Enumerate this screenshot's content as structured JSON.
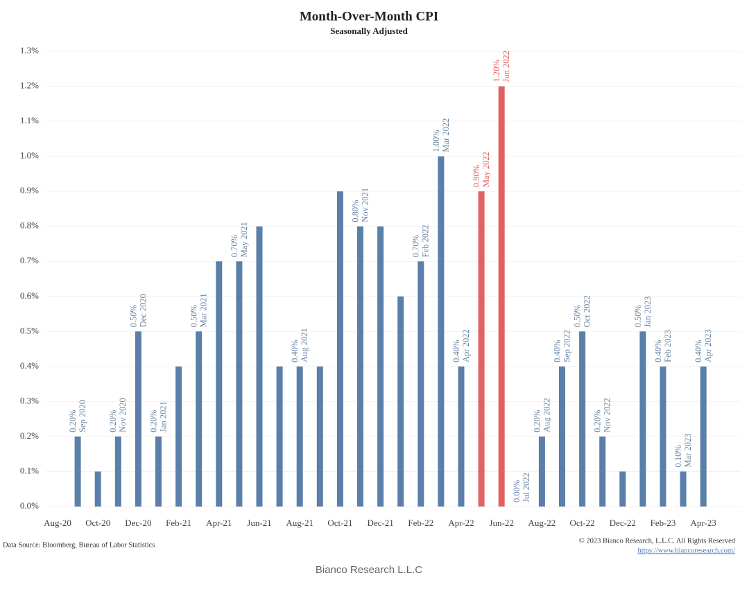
{
  "chart_data": {
    "type": "bar",
    "title": "Month-Over-Month CPI",
    "subtitle": "Seasonally Adjusted",
    "categories": [
      "Aug-20",
      null,
      "Oct-20",
      null,
      "Dec-20",
      null,
      "Feb-21",
      null,
      "Apr-21",
      null,
      "Jun-21",
      null,
      "Aug-21",
      null,
      "Oct-21",
      null,
      "Dec-21",
      null,
      "Feb-22",
      null,
      "Apr-22",
      null,
      "Jun-22",
      null,
      "Aug-22",
      null,
      "Oct-22",
      null,
      "Dec-22",
      null,
      "Feb-23",
      null,
      "Apr-23"
    ],
    "values": [
      null,
      0.2,
      0.1,
      0.2,
      0.5,
      0.2,
      0.4,
      0.5,
      0.7,
      0.7,
      0.8,
      0.4,
      0.4,
      0.4,
      0.9,
      0.8,
      0.8,
      0.6,
      0.7,
      1.0,
      0.4,
      0.9,
      1.2,
      0.0,
      0.2,
      0.4,
      0.5,
      0.2,
      0.1,
      0.5,
      0.4,
      0.1,
      0.4
    ],
    "value_labels": [
      null,
      "0.20%",
      null,
      "0.20%",
      "0.50%",
      "0.20%",
      null,
      "0.50%",
      null,
      "0.70%",
      null,
      null,
      "0.40%",
      null,
      null,
      "0.80%",
      null,
      null,
      "0.70%",
      "1.00%",
      "0.40%",
      "0.90%",
      "1.20%",
      "0.00%",
      "0.20%",
      "0.40%",
      "0.50%",
      "0.20%",
      null,
      "0.50%",
      "0.40%",
      "0.10%",
      "0.40%"
    ],
    "bar_labels": [
      null,
      "Sep 2020",
      null,
      "Nov 2020",
      "Dec 2020",
      "Jan 2021",
      null,
      "Mar 2021",
      null,
      "May 2021",
      null,
      null,
      "Aug 2021",
      null,
      null,
      "Nov 2021",
      null,
      null,
      "Feb 2022",
      "Mar 2022",
      "Apr 2022",
      "May 2022",
      "Jun 2022",
      "Jul 2022",
      "Aug 2022",
      "Sep 2022",
      "Oct 2022",
      "Nov 2022",
      null,
      "Jan 2023",
      "Feb 2023",
      "Mar 2023",
      "Apr 2023"
    ],
    "colors": [
      "#5a7fa8",
      "#5a7fa8",
      "#5a7fa8",
      "#5a7fa8",
      "#5a7fa8",
      "#5a7fa8",
      "#5a7fa8",
      "#5a7fa8",
      "#5a7fa8",
      "#5a7fa8",
      "#5a7fa8",
      "#5a7fa8",
      "#5a7fa8",
      "#5a7fa8",
      "#5a7fa8",
      "#5a7fa8",
      "#5a7fa8",
      "#5a7fa8",
      "#5a7fa8",
      "#5a7fa8",
      "#5a7fa8",
      "#e06262",
      "#e06262",
      "#5a7fa8",
      "#5a7fa8",
      "#5a7fa8",
      "#5a7fa8",
      "#5a7fa8",
      "#5a7fa8",
      "#5a7fa8",
      "#5a7fa8",
      "#5a7fa8",
      "#5a7fa8"
    ],
    "ylim": [
      0,
      1.3
    ],
    "yticks": [
      {
        "value": 0,
        "label": "0.0%"
      },
      {
        "value": 0.1,
        "label": "0.1%"
      },
      {
        "value": 0.2,
        "label": "0.2%"
      },
      {
        "value": 0.3,
        "label": "0.3%"
      },
      {
        "value": 0.4,
        "label": "0.4%"
      },
      {
        "value": 0.5,
        "label": "0.5%"
      },
      {
        "value": 0.6,
        "label": "0.6%"
      },
      {
        "value": 0.7,
        "label": "0.7%"
      },
      {
        "value": 0.8,
        "label": "0.8%"
      },
      {
        "value": 0.9,
        "label": "0.9%"
      },
      {
        "value": 1.0,
        "label": "1.0%"
      },
      {
        "value": 1.1,
        "label": "1.1%"
      },
      {
        "value": 1.2,
        "label": "1.2%"
      },
      {
        "value": 1.3,
        "label": "1.3%"
      }
    ],
    "grid": true,
    "source": "Data Source: Bloomberg, Bureau of Labor Statistics",
    "copyright": "© 2023 Bianco Research, L.L.C. All Rights Reserved",
    "url": "https://www.biancoresearch.com/",
    "watermark": "Bianco Research L.L.C"
  }
}
